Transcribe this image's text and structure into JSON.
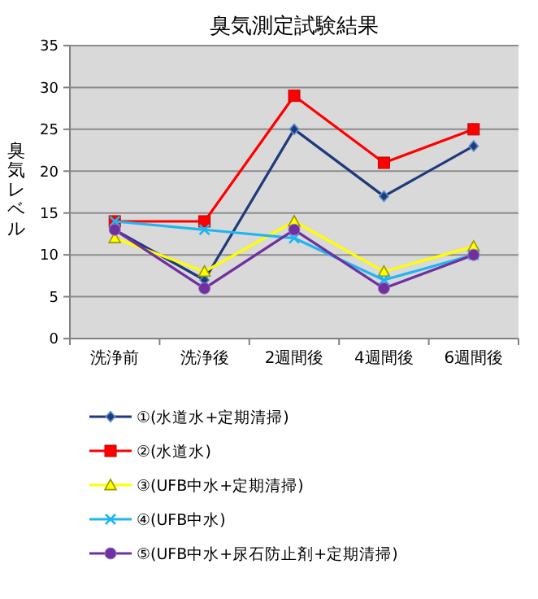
{
  "chart_data": {
    "type": "line",
    "title": "臭気測定試験結果",
    "ylabel": "臭気レベル",
    "categories": [
      "洗浄前",
      "洗浄後",
      "2週間後",
      "4週間後",
      "6週間後"
    ],
    "ylim": [
      0,
      35
    ],
    "yticks": [
      0,
      5,
      10,
      15,
      20,
      25,
      30,
      35
    ],
    "grid": "y",
    "legend": "bottom",
    "series": [
      {
        "name": "①(水道水+定期清掃)",
        "color": "#1f3a7a",
        "marker": "diamond",
        "values": [
          13,
          7,
          25,
          17,
          23
        ]
      },
      {
        "name": "②(水道水)",
        "color": "#ff0000",
        "marker": "square",
        "values": [
          14,
          14,
          29,
          21,
          25
        ]
      },
      {
        "name": "③(UFB中水+定期清掃)",
        "color": "#ffff00",
        "marker": "triangle",
        "values": [
          12,
          8,
          14,
          8,
          11
        ]
      },
      {
        "name": "④(UFB中水)",
        "color": "#1fb6f0",
        "marker": "cross",
        "values": [
          14,
          13,
          12,
          7,
          10
        ]
      },
      {
        "name": "⑤(UFB中水+尿石防止剤+定期清掃)",
        "color": "#7030a0",
        "marker": "circle",
        "values": [
          13,
          6,
          13,
          6,
          10
        ]
      }
    ]
  }
}
